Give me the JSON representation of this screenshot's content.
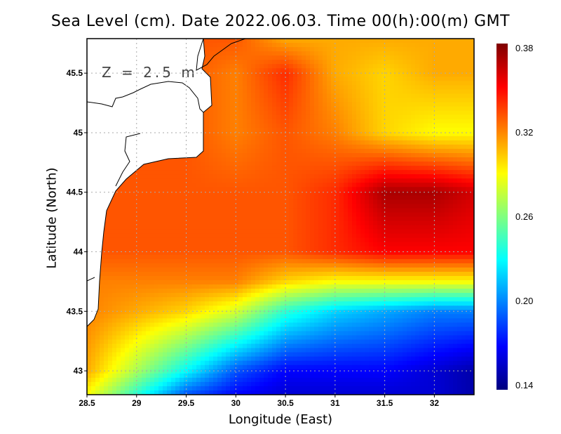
{
  "chart_data": {
    "type": "heatmap",
    "title": "Sea Level (cm). Date 2022.06.03. Time 00(h):00(m) GMT",
    "xlabel": "Longitude (East)",
    "ylabel": "Latitude (North)",
    "annotation": "Z = 2.5 m",
    "xlim": [
      28.5,
      32.4
    ],
    "ylim": [
      42.8,
      45.79
    ],
    "xticks": [
      "28.5",
      "29",
      "29.5",
      "30",
      "30.5",
      "31",
      "31.5",
      "32"
    ],
    "xtick_values": [
      28.5,
      29,
      29.5,
      30,
      30.5,
      31,
      31.5,
      32
    ],
    "yticks": [
      "43",
      "43.5",
      "44",
      "44.5",
      "45",
      "45.5"
    ],
    "ytick_values": [
      43,
      43.5,
      44,
      44.5,
      45,
      45.5
    ],
    "grid": true,
    "grid_lons": [
      28.5,
      29,
      29.5,
      30,
      30.5,
      31,
      31.5,
      32,
      32.4
    ],
    "grid_lats": [
      45.79,
      45.5,
      45.0,
      44.5,
      44.0,
      43.75,
      43.5,
      43.0,
      42.8
    ],
    "values": [
      [
        0.33,
        0.33,
        0.33,
        0.33,
        0.31,
        0.31,
        0.31,
        0.31,
        0.31
      ],
      [
        0.33,
        0.33,
        0.33,
        0.32,
        0.34,
        0.31,
        0.3,
        0.31,
        0.31
      ],
      [
        0.33,
        0.33,
        0.33,
        0.32,
        0.33,
        0.32,
        0.3,
        0.29,
        0.29
      ],
      [
        0.33,
        0.33,
        0.33,
        0.33,
        0.33,
        0.34,
        0.37,
        0.37,
        0.36
      ],
      [
        0.33,
        0.33,
        0.33,
        0.33,
        0.33,
        0.34,
        0.35,
        0.35,
        0.35
      ],
      [
        0.32,
        0.32,
        0.32,
        0.32,
        0.3,
        0.29,
        0.29,
        0.29,
        0.29
      ],
      [
        0.32,
        0.31,
        0.3,
        0.28,
        0.24,
        0.22,
        0.21,
        0.2,
        0.2
      ],
      [
        0.31,
        0.27,
        0.23,
        0.19,
        0.17,
        0.17,
        0.17,
        0.16,
        0.15
      ],
      [
        0.29,
        0.24,
        0.19,
        0.17,
        0.16,
        0.16,
        0.16,
        0.16,
        0.15
      ]
    ],
    "colorbar": {
      "ticks": [
        "0.38",
        "0.32",
        "0.26",
        "0.20",
        "0.14"
      ],
      "tick_values": [
        0.38,
        0.32,
        0.26,
        0.2,
        0.14
      ],
      "range": [
        0.14,
        0.38
      ]
    },
    "colors": [
      "#00007f",
      "#0000ff",
      "#0080ff",
      "#00ffff",
      "#80ff80",
      "#ffff00",
      "#ff8000",
      "#ff0000",
      "#7f0000"
    ]
  }
}
